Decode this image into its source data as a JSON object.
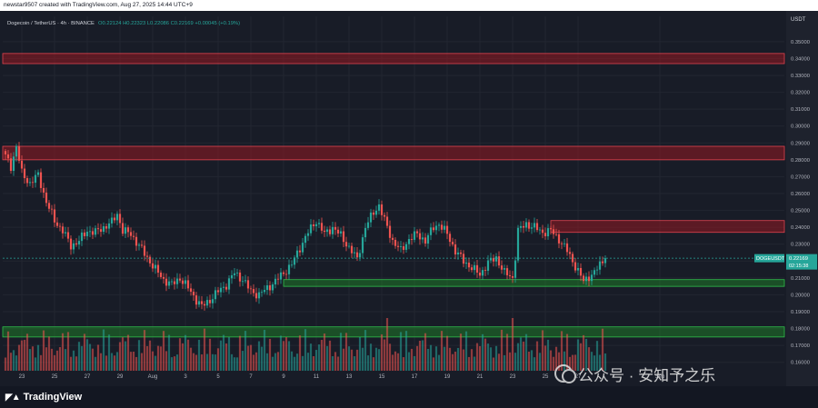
{
  "header": {
    "caption": "newstar9507 created with TradingView.com, Aug 27, 2025 14:44 UTC+9"
  },
  "legend": {
    "symbol": "Dogecoin / TetherUS · 4h · BINANCE",
    "ohlc": "O0.22124  H0.22323  L0.22086  C0.22169  +0.00045 (+0.19%)"
  },
  "price_axis": {
    "currency": "USDT"
  },
  "price_label": {
    "ticker": "DOGEUSDT",
    "price": "0.22169",
    "countdown": "02:15:38"
  },
  "footer": {
    "logo": "TradingView"
  },
  "watermark": {
    "text": "公众号 · 安知予之乐"
  },
  "colors": {
    "up": "#26a69a",
    "down": "#ef5350",
    "resistance": "#b71c1c",
    "support": "#1b7a1b",
    "background": "#181c27",
    "grid": "#222631"
  },
  "chart_data": {
    "type": "candlestick",
    "symbol": "DOGEUSDT",
    "timeframe": "4h",
    "ylim": [
      0.155,
      0.365
    ],
    "yticks": [
      0.16,
      0.17,
      0.18,
      0.19,
      0.2,
      0.21,
      0.22,
      0.23,
      0.24,
      0.25,
      0.26,
      0.27,
      0.28,
      0.29,
      0.3,
      0.31,
      0.32,
      0.33,
      0.34,
      0.35
    ],
    "xticks": [
      {
        "label": "23",
        "index": 6
      },
      {
        "label": "25",
        "index": 18
      },
      {
        "label": "27",
        "index": 30
      },
      {
        "label": "29",
        "index": 42
      },
      {
        "label": "Aug",
        "index": 54
      },
      {
        "label": "3",
        "index": 66
      },
      {
        "label": "5",
        "index": 78
      },
      {
        "label": "7",
        "index": 90
      },
      {
        "label": "9",
        "index": 102
      },
      {
        "label": "11",
        "index": 114
      },
      {
        "label": "13",
        "index": 126
      },
      {
        "label": "15",
        "index": 138
      },
      {
        "label": "17",
        "index": 150
      },
      {
        "label": "19",
        "index": 162
      },
      {
        "label": "21",
        "index": 174
      },
      {
        "label": "23",
        "index": 186
      },
      {
        "label": "25",
        "index": 198
      },
      {
        "label": "27",
        "index": 210
      },
      {
        "label": "Sep",
        "index": 240
      }
    ],
    "last_price": 0.22169,
    "close_anchors": [
      [
        0,
        0.282
      ],
      [
        2,
        0.276
      ],
      [
        4,
        0.288
      ],
      [
        6,
        0.272
      ],
      [
        9,
        0.266
      ],
      [
        12,
        0.271
      ],
      [
        15,
        0.255
      ],
      [
        18,
        0.244
      ],
      [
        21,
        0.238
      ],
      [
        24,
        0.229
      ],
      [
        27,
        0.232
      ],
      [
        30,
        0.238
      ],
      [
        33,
        0.237
      ],
      [
        36,
        0.24
      ],
      [
        39,
        0.243
      ],
      [
        41,
        0.248
      ],
      [
        43,
        0.238
      ],
      [
        46,
        0.236
      ],
      [
        49,
        0.229
      ],
      [
        52,
        0.222
      ],
      [
        55,
        0.215
      ],
      [
        58,
        0.209
      ],
      [
        61,
        0.206
      ],
      [
        64,
        0.21
      ],
      [
        67,
        0.204
      ],
      [
        70,
        0.197
      ],
      [
        72,
        0.193
      ],
      [
        75,
        0.197
      ],
      [
        78,
        0.202
      ],
      [
        81,
        0.206
      ],
      [
        84,
        0.213
      ],
      [
        87,
        0.209
      ],
      [
        90,
        0.202
      ],
      [
        93,
        0.2
      ],
      [
        96,
        0.204
      ],
      [
        99,
        0.208
      ],
      [
        102,
        0.213
      ],
      [
        105,
        0.218
      ],
      [
        108,
        0.228
      ],
      [
        111,
        0.237
      ],
      [
        114,
        0.244
      ],
      [
        117,
        0.236
      ],
      [
        120,
        0.24
      ],
      [
        123,
        0.235
      ],
      [
        126,
        0.228
      ],
      [
        129,
        0.221
      ],
      [
        132,
        0.24
      ],
      [
        135,
        0.249
      ],
      [
        137,
        0.253
      ],
      [
        139,
        0.244
      ],
      [
        142,
        0.232
      ],
      [
        145,
        0.226
      ],
      [
        148,
        0.233
      ],
      [
        151,
        0.236
      ],
      [
        154,
        0.232
      ],
      [
        157,
        0.24
      ],
      [
        159,
        0.242
      ],
      [
        162,
        0.236
      ],
      [
        165,
        0.226
      ],
      [
        168,
        0.22
      ],
      [
        171,
        0.216
      ],
      [
        174,
        0.212
      ],
      [
        177,
        0.219
      ],
      [
        180,
        0.222
      ],
      [
        183,
        0.213
      ],
      [
        186,
        0.21
      ],
      [
        187,
        0.223
      ],
      [
        188,
        0.238
      ],
      [
        191,
        0.242
      ],
      [
        194,
        0.24
      ],
      [
        197,
        0.237
      ],
      [
        200,
        0.238
      ],
      [
        203,
        0.233
      ],
      [
        206,
        0.226
      ],
      [
        209,
        0.217
      ],
      [
        212,
        0.208
      ],
      [
        214,
        0.211
      ],
      [
        216,
        0.213
      ],
      [
        218,
        0.218
      ],
      [
        220,
        0.2217
      ]
    ],
    "zones": [
      {
        "type": "resistance",
        "low": 0.337,
        "high": 0.343,
        "from": "start",
        "to": "end"
      },
      {
        "type": "resistance",
        "low": 0.28,
        "high": 0.288,
        "from": "start",
        "to": "end"
      },
      {
        "type": "resistance",
        "low": 0.237,
        "high": 0.244,
        "from": 200,
        "to": "end"
      },
      {
        "type": "support",
        "low": 0.205,
        "high": 0.209,
        "from": 102,
        "to": "end"
      },
      {
        "type": "support",
        "low": 0.175,
        "high": 0.181,
        "from": "start",
        "to": "end"
      }
    ],
    "volume_spikes": [
      [
        140,
        1.0
      ],
      [
        186,
        1.0
      ],
      [
        203,
        0.35
      ],
      [
        208,
        0.3
      ]
    ]
  }
}
